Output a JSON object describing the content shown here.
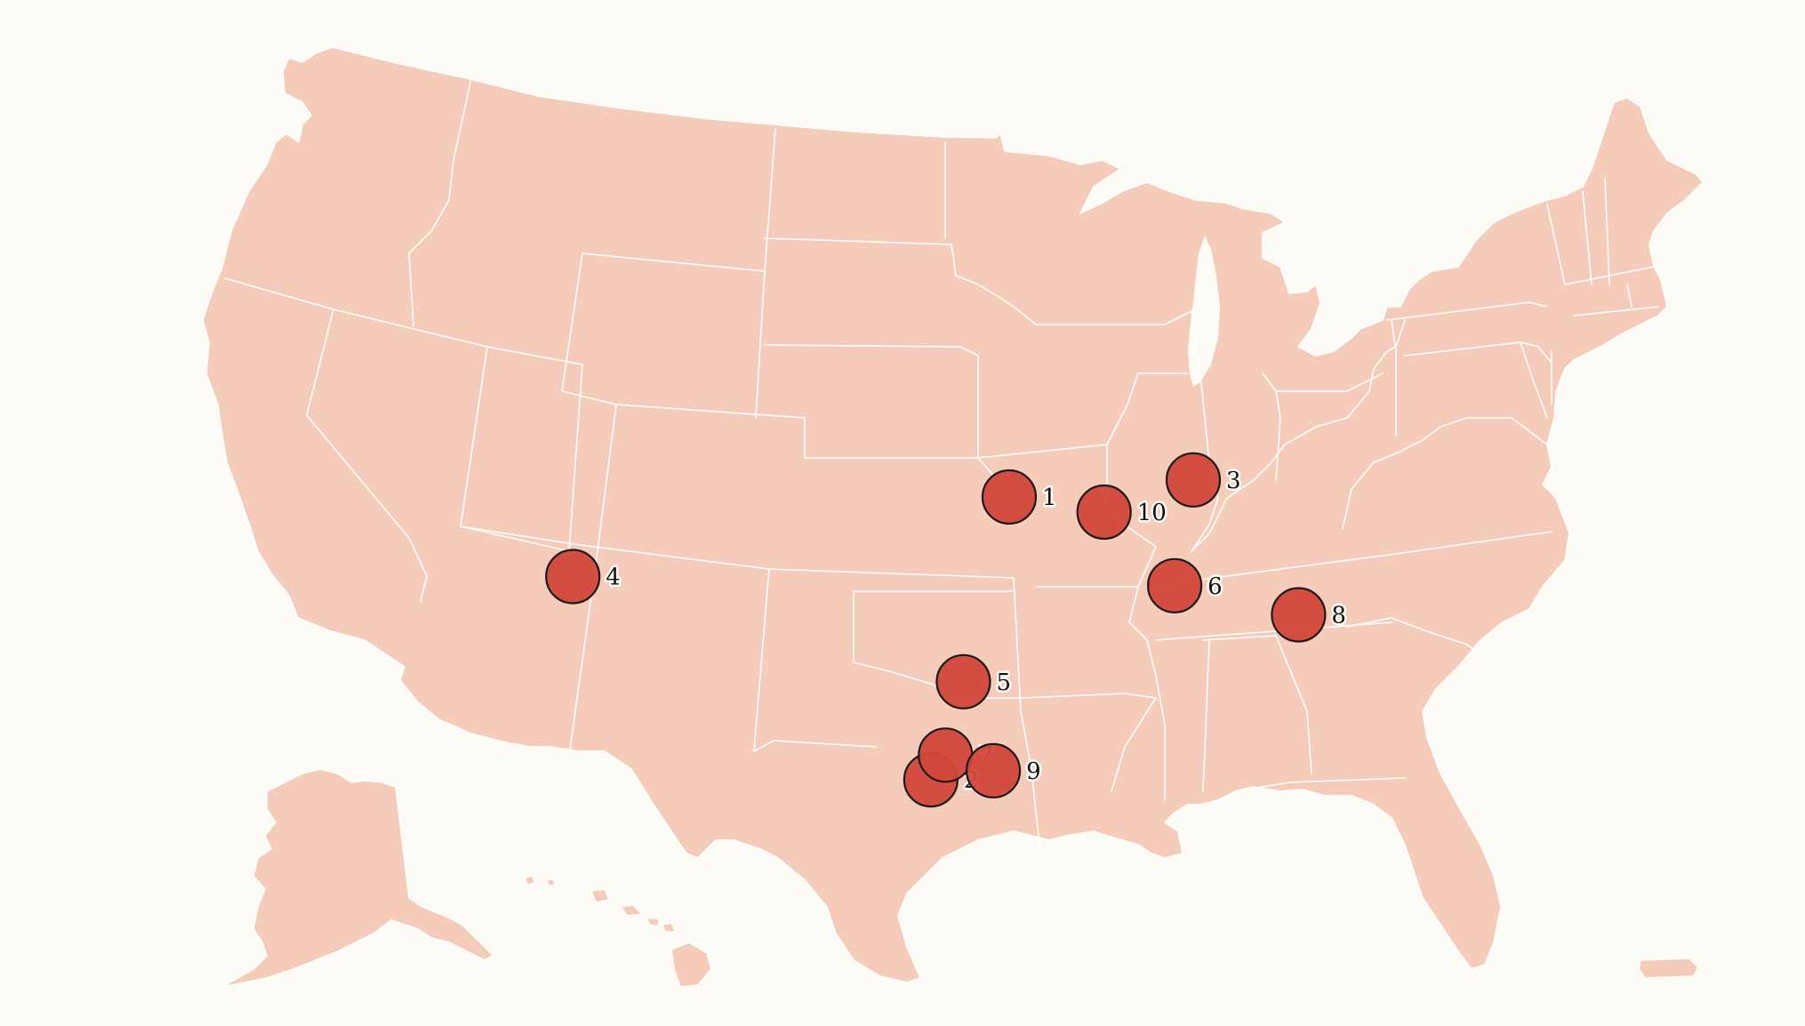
{
  "map": {
    "region": "United States",
    "marker_color": "#d1473a",
    "marker_outline": "#1a1a1a",
    "land_color": "#f5cbb9",
    "background_color": "#fdfbf6",
    "markers": [
      {
        "label": "1",
        "lat": 39.1,
        "lon": -94.58
      },
      {
        "label": "2",
        "lat": 29.42,
        "lon": -98.49
      },
      {
        "label": "3",
        "lat": 39.77,
        "lon": -86.16
      },
      {
        "label": "4",
        "lat": 36.17,
        "lon": -115.14
      },
      {
        "label": "5",
        "lat": 32.78,
        "lon": -96.8
      },
      {
        "label": "6",
        "lat": 36.16,
        "lon": -86.78
      },
      {
        "label": "7",
        "lat": 30.27,
        "lon": -97.74
      },
      {
        "label": "8",
        "lat": 35.23,
        "lon": -80.84
      },
      {
        "label": "9",
        "lat": 29.76,
        "lon": -95.37
      },
      {
        "label": "10",
        "lat": 38.63,
        "lon": -90.2
      }
    ]
  }
}
